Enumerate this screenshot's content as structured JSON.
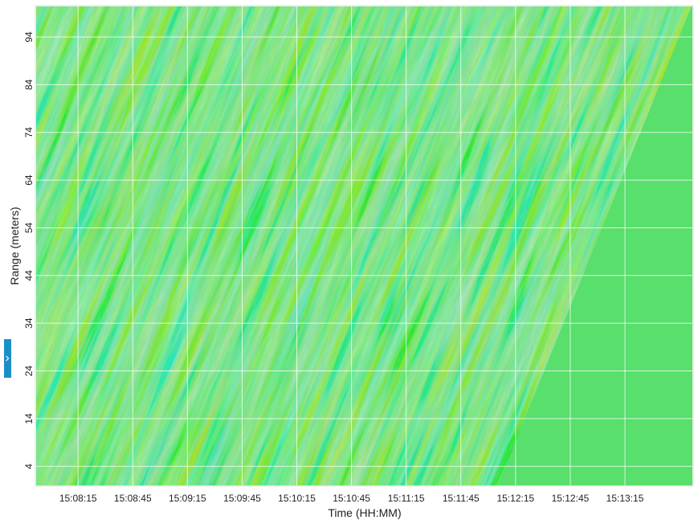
{
  "chart_data": {
    "type": "heatmap",
    "xlabel": "Time (HH:MM)",
    "ylabel": "Range (meters)",
    "xlim": [
      54472,
      54832
    ],
    "xticks": [
      {
        "value": 54495,
        "label": "15:08:15"
      },
      {
        "value": 54525,
        "label": "15:08:45"
      },
      {
        "value": 54555,
        "label": "15:09:15"
      },
      {
        "value": 54585,
        "label": "15:09:45"
      },
      {
        "value": 54615,
        "label": "15:10:15"
      },
      {
        "value": 54645,
        "label": "15:10:45"
      },
      {
        "value": 54675,
        "label": "15:11:15"
      },
      {
        "value": 54705,
        "label": "15:11:45"
      },
      {
        "value": 54735,
        "label": "15:12:15"
      },
      {
        "value": 54765,
        "label": "15:12:45"
      },
      {
        "value": 54795,
        "label": "15:13:15"
      }
    ],
    "ylim": [
      0,
      100.4
    ],
    "yticks": [
      4,
      14,
      24,
      34,
      44,
      54,
      64,
      74,
      84,
      94
    ],
    "grid": true
  }
}
